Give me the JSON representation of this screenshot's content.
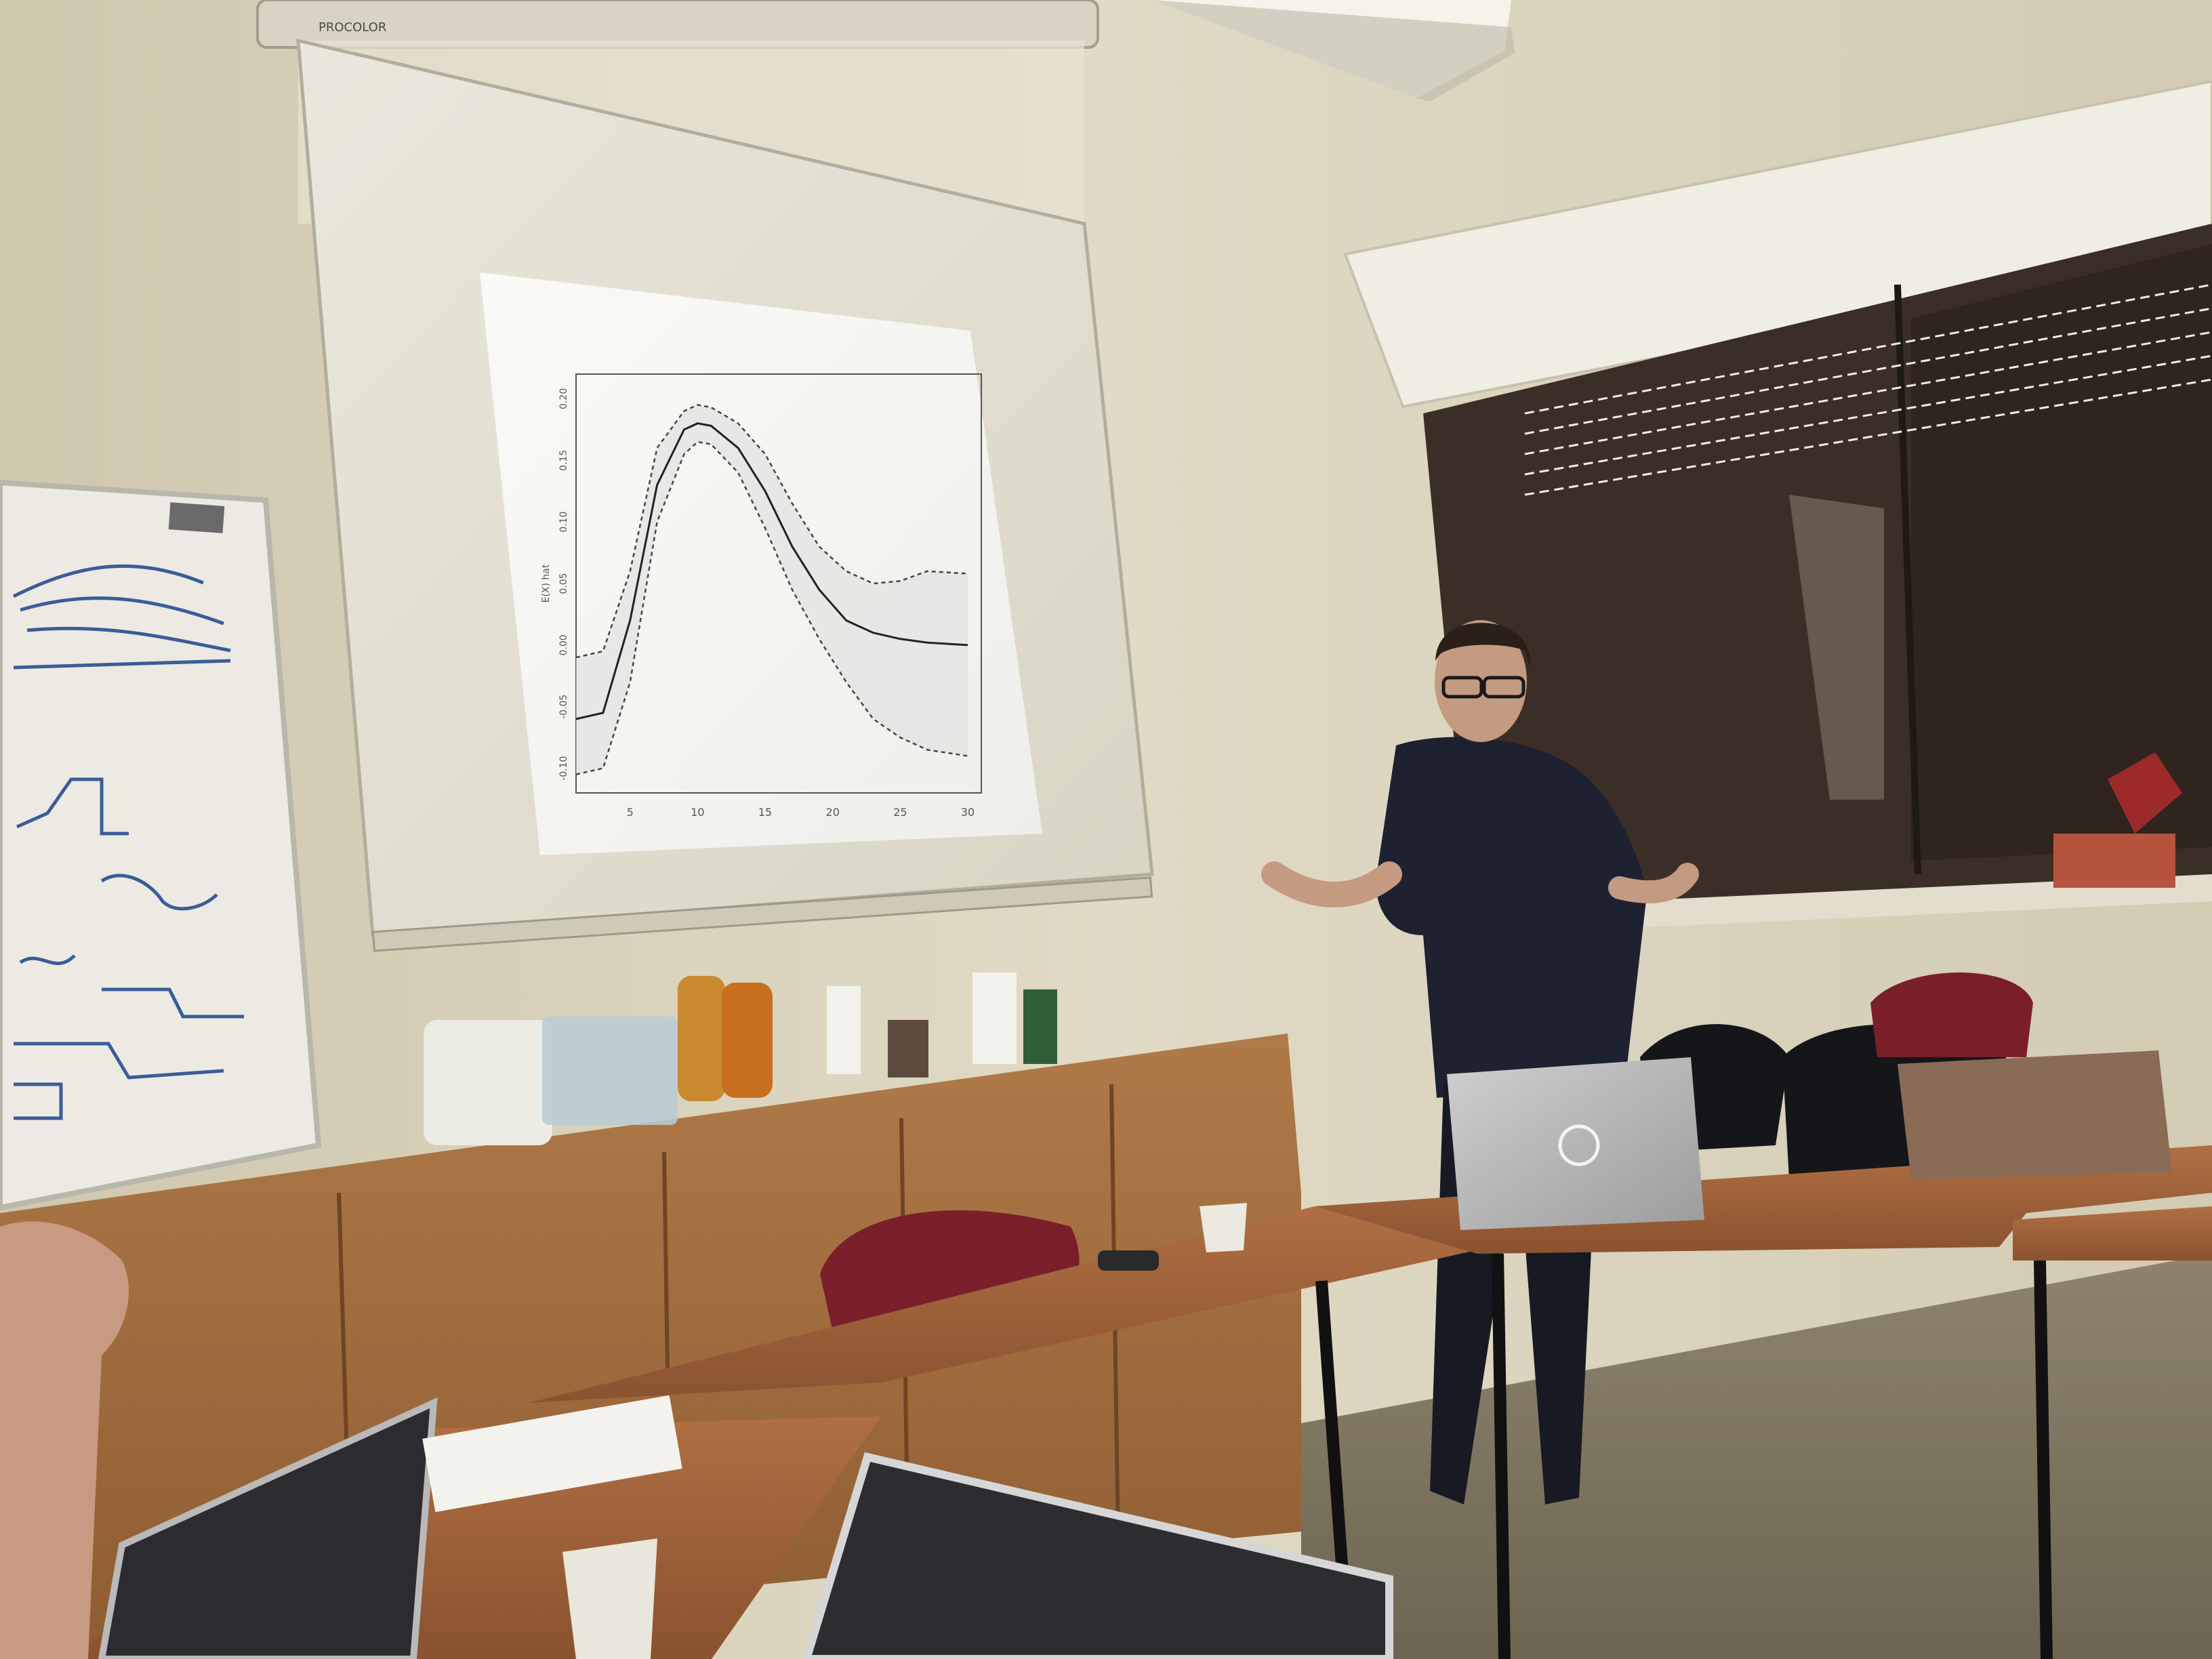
{
  "screen": {
    "brand": "PROCOLOR"
  },
  "chart_data": {
    "type": "line",
    "xlabel": "",
    "ylabel": "E(X) hat",
    "xticks": [
      "5",
      "10",
      "15",
      "20",
      "25",
      "30"
    ],
    "yticks": [
      "-0.10",
      "-0.05",
      "0.00",
      "0.05",
      "0.10",
      "0.15",
      "0.20"
    ],
    "series": [
      {
        "role": "mean",
        "x": [
          1,
          3,
          5,
          7,
          9,
          10,
          11,
          13,
          15,
          17,
          19,
          21,
          23,
          25,
          27,
          30
        ],
        "y": [
          -0.06,
          -0.055,
          0.02,
          0.13,
          0.175,
          0.18,
          0.178,
          0.16,
          0.125,
          0.08,
          0.045,
          0.02,
          0.01,
          0.005,
          0.002,
          0.0
        ]
      },
      {
        "role": "upper",
        "x": [
          1,
          3,
          5,
          7,
          9,
          10,
          11,
          13,
          15,
          17,
          19,
          21,
          23,
          25,
          27,
          30
        ],
        "y": [
          -0.01,
          -0.005,
          0.06,
          0.16,
          0.19,
          0.195,
          0.193,
          0.18,
          0.155,
          0.115,
          0.08,
          0.06,
          0.05,
          0.052,
          0.06,
          0.058
        ]
      },
      {
        "role": "lower",
        "x": [
          1,
          3,
          5,
          7,
          9,
          10,
          11,
          13,
          15,
          17,
          19,
          21,
          23,
          25,
          27,
          30
        ],
        "y": [
          -0.105,
          -0.1,
          -0.03,
          0.1,
          0.155,
          0.165,
          0.163,
          0.14,
          0.095,
          0.045,
          0.005,
          -0.03,
          -0.06,
          -0.075,
          -0.085,
          -0.09
        ]
      }
    ],
    "xlim": [
      1,
      31
    ],
    "ylim": [
      -0.12,
      0.22
    ]
  }
}
